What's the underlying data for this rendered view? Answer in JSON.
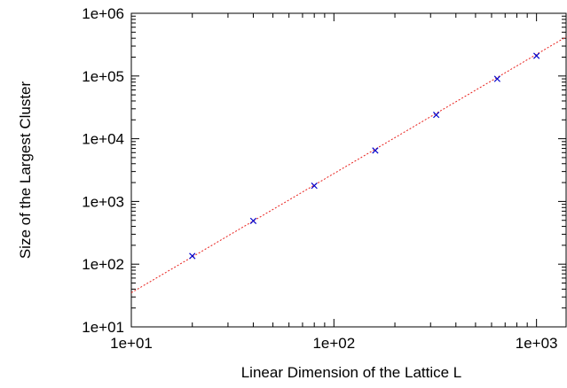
{
  "chart_data": {
    "type": "scatter",
    "title": "",
    "xlabel": "Linear Dimension of the Lattice L",
    "ylabel": "Size of the Largest Cluster",
    "x_scale": "log",
    "y_scale": "log",
    "xlim": [
      10,
      1400
    ],
    "ylim": [
      10,
      1000000
    ],
    "x_ticks": [
      {
        "value": 10,
        "label": "1e+01"
      },
      {
        "value": 100,
        "label": "1e+02"
      },
      {
        "value": 1000,
        "label": "1e+03"
      }
    ],
    "y_ticks": [
      {
        "value": 10,
        "label": "1e+01"
      },
      {
        "value": 100,
        "label": "1e+02"
      },
      {
        "value": 1000,
        "label": "1e+03"
      },
      {
        "value": 10000,
        "label": "1e+04"
      },
      {
        "value": 100000,
        "label": "1e+05"
      },
      {
        "value": 1000000,
        "label": "1e+06"
      }
    ],
    "grid": false,
    "legend": "none",
    "series": [
      {
        "type": "scatter",
        "marker": "x",
        "color": "#0000cc",
        "x": [
          20,
          40,
          80,
          160,
          320,
          640,
          1000
        ],
        "y": [
          135,
          490,
          1780,
          6500,
          24000,
          90000,
          210000
        ]
      },
      {
        "type": "line",
        "style": "dotted",
        "color": "#e8201c",
        "x": [
          10,
          1400
        ],
        "y": [
          35,
          420000
        ]
      }
    ]
  }
}
